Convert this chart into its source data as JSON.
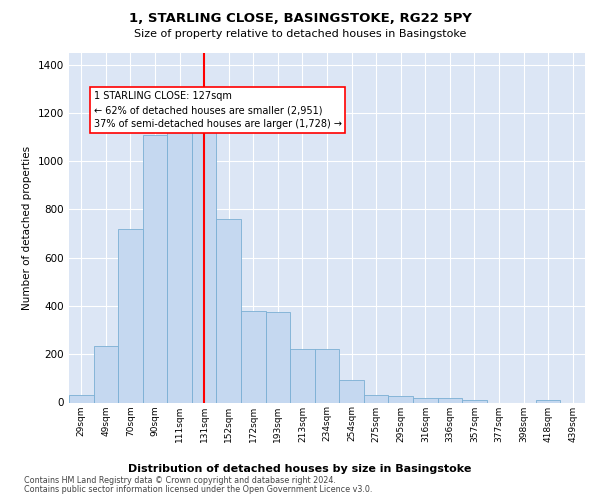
{
  "title": "1, STARLING CLOSE, BASINGSTOKE, RG22 5PY",
  "subtitle": "Size of property relative to detached houses in Basingstoke",
  "xlabel": "Distribution of detached houses by size in Basingstoke",
  "ylabel": "Number of detached properties",
  "bar_color": "#c5d8f0",
  "bar_edge_color": "#7aafd4",
  "background_color": "#dce6f5",
  "vline_x_index": 5,
  "vline_color": "red",
  "annotation_text": "1 STARLING CLOSE: 127sqm\n← 62% of detached houses are smaller (2,951)\n37% of semi-detached houses are larger (1,728) →",
  "categories": [
    "29sqm",
    "49sqm",
    "70sqm",
    "90sqm",
    "111sqm",
    "131sqm",
    "152sqm",
    "172sqm",
    "193sqm",
    "213sqm",
    "234sqm",
    "254sqm",
    "275sqm",
    "295sqm",
    "316sqm",
    "336sqm",
    "357sqm",
    "377sqm",
    "398sqm",
    "418sqm",
    "439sqm"
  ],
  "bar_heights": [
    30,
    235,
    720,
    1110,
    1130,
    1130,
    760,
    380,
    375,
    220,
    220,
    95,
    30,
    25,
    20,
    17,
    10,
    0,
    0,
    10,
    0
  ],
  "ylim": [
    0,
    1450
  ],
  "yticks": [
    0,
    200,
    400,
    600,
    800,
    1000,
    1200,
    1400
  ],
  "footnote1": "Contains HM Land Registry data © Crown copyright and database right 2024.",
  "footnote2": "Contains public sector information licensed under the Open Government Licence v3.0."
}
